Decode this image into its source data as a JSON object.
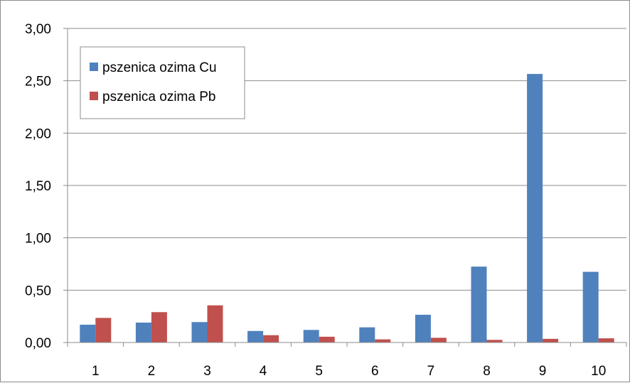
{
  "chart_data": {
    "type": "bar",
    "title": "",
    "xlabel": "",
    "ylabel": "",
    "categories": [
      "1",
      "2",
      "3",
      "4",
      "5",
      "6",
      "7",
      "8",
      "9",
      "10"
    ],
    "series": [
      {
        "name": "pszenica ozima Cu",
        "color": "#4f81bd",
        "values": [
          0.17,
          0.19,
          0.195,
          0.11,
          0.12,
          0.145,
          0.265,
          0.725,
          2.565,
          0.675
        ]
      },
      {
        "name": "pszenica ozima Pb",
        "color": "#c0504d",
        "values": [
          0.235,
          0.29,
          0.355,
          0.07,
          0.055,
          0.03,
          0.045,
          0.025,
          0.035,
          0.04
        ]
      }
    ],
    "ylim": [
      0,
      3
    ],
    "yticks": [
      "0,00",
      "0,50",
      "1,00",
      "1,50",
      "2,00",
      "2,50",
      "3,00"
    ],
    "grid": true,
    "legend_position": "top-left"
  }
}
